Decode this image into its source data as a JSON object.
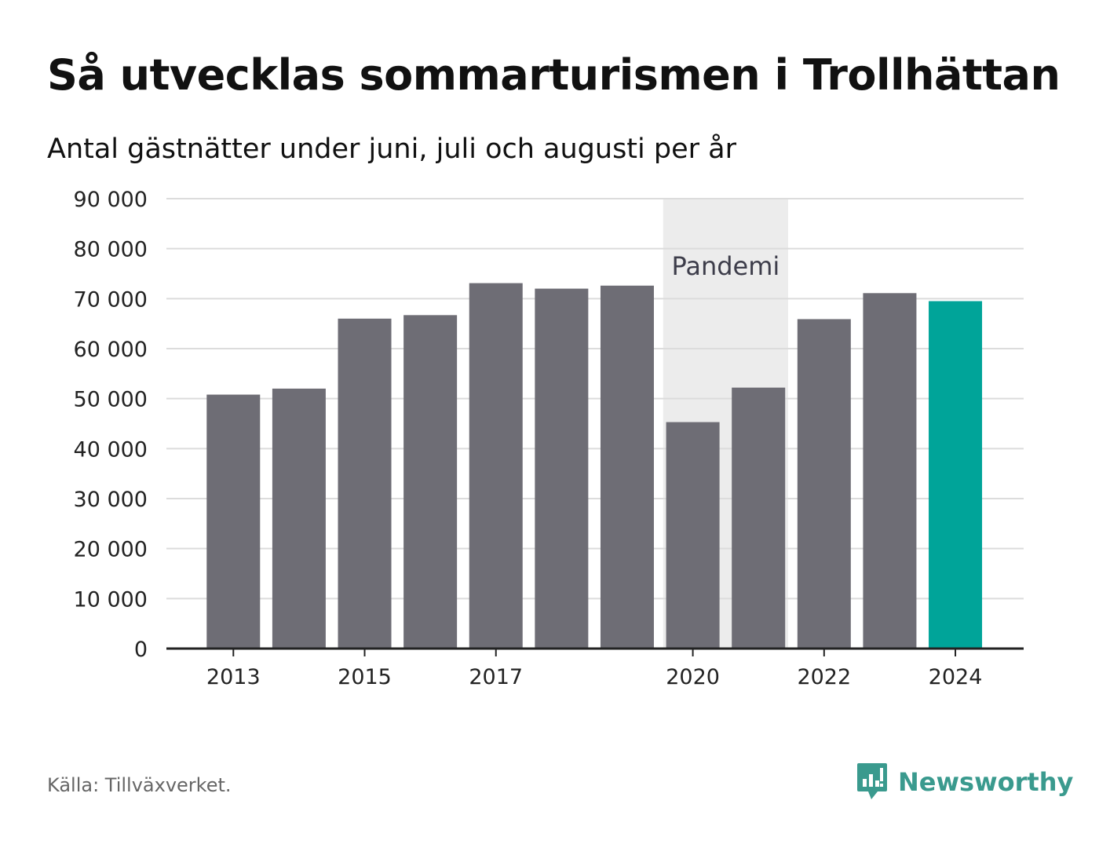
{
  "title": "Så utvecklas sommarturismen i Trollhättan",
  "subtitle": "Antal gästnätter under juni, juli och augusti per år",
  "source": "Källa: Tillväxverket.",
  "brand": {
    "name": "Newsworthy",
    "icon": "bar-chart-speech-bubble-icon",
    "color": "#3a9a8e"
  },
  "chart_data": {
    "type": "bar",
    "categories": [
      "2013",
      "2014",
      "2015",
      "2016",
      "2017",
      "2018",
      "2019",
      "2020",
      "2021",
      "2022",
      "2023",
      "2024"
    ],
    "values": [
      50800,
      52000,
      66000,
      66700,
      73100,
      72000,
      72600,
      45300,
      52200,
      65900,
      71100,
      69500
    ],
    "x_tick_labels": [
      "2013",
      "2015",
      "2017",
      "2020",
      "2022",
      "2024"
    ],
    "ylim": [
      0,
      90000
    ],
    "y_ticks": [
      0,
      10000,
      20000,
      30000,
      40000,
      50000,
      60000,
      70000,
      80000,
      90000
    ],
    "y_tick_labels": [
      "0",
      "10 000",
      "20 000",
      "30 000",
      "40 000",
      "50 000",
      "60 000",
      "70 000",
      "80 000",
      "90 000"
    ],
    "xlabel": "",
    "ylabel": "",
    "grid": true,
    "bar_color": "#6e6d75",
    "highlight": {
      "category": "2024",
      "color": "#00a499"
    },
    "annotation": {
      "label": "Pandemi",
      "from": "2020",
      "to": "2021",
      "color": "#ececec"
    }
  }
}
